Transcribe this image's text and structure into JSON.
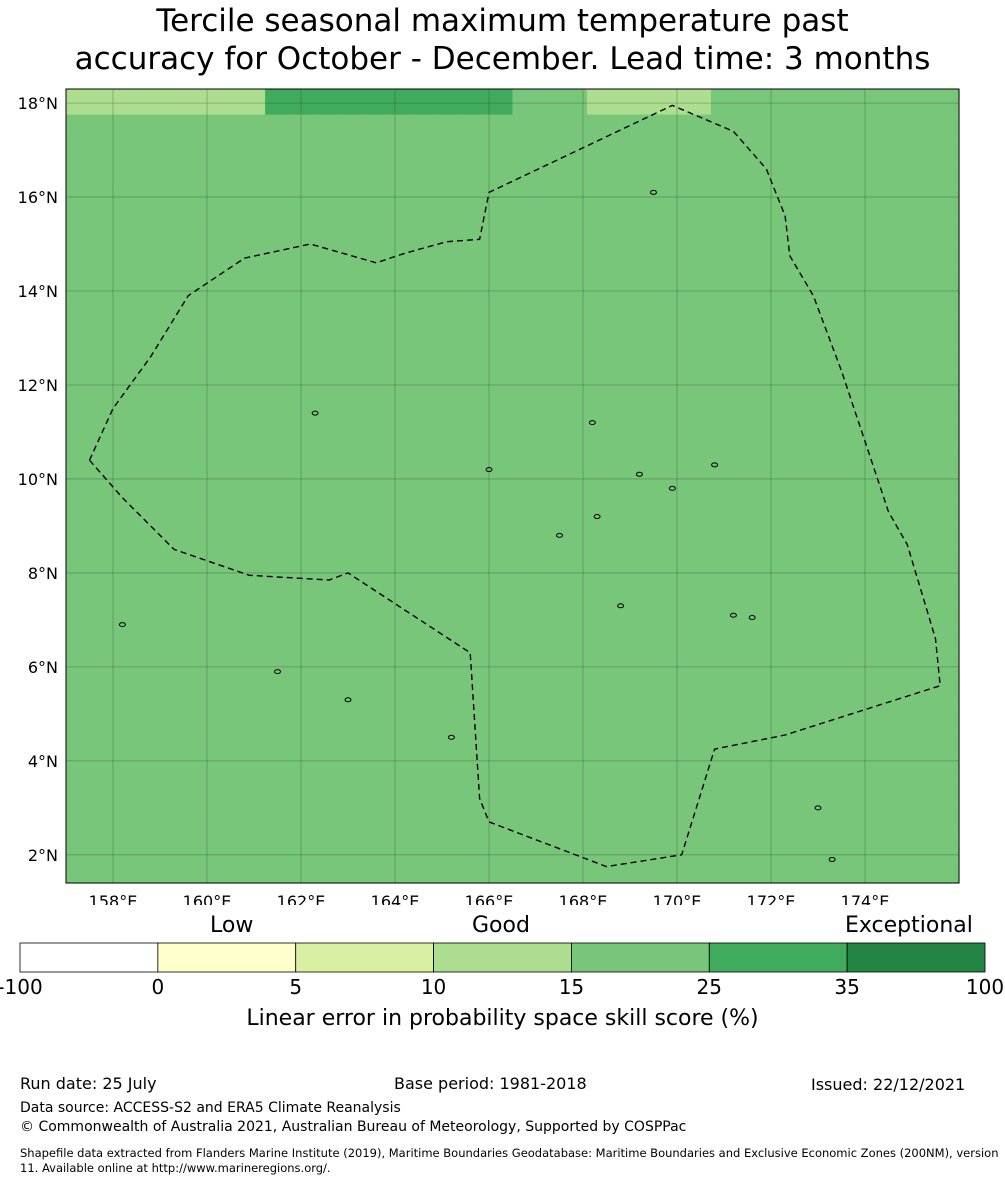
{
  "title": {
    "line1": "Tercile seasonal maximum temperature past",
    "line2": "accuracy for October - December. Lead time: 3 months"
  },
  "map": {
    "lon_range": [
      157,
      176
    ],
    "lat_range": [
      1.4,
      18.3
    ],
    "lat_ticks": [
      {
        "value": 18,
        "label": "18°N"
      },
      {
        "value": 16,
        "label": "16°N"
      },
      {
        "value": 14,
        "label": "14°N"
      },
      {
        "value": 12,
        "label": "12°N"
      },
      {
        "value": 10,
        "label": "10°N"
      },
      {
        "value": 8,
        "label": "8°N"
      },
      {
        "value": 6,
        "label": "6°N"
      },
      {
        "value": 4,
        "label": "4°N"
      },
      {
        "value": 2,
        "label": "2°N"
      }
    ],
    "lon_ticks": [
      {
        "value": 158,
        "label": "158°E"
      },
      {
        "value": 160,
        "label": "160°E"
      },
      {
        "value": 162,
        "label": "162°E"
      },
      {
        "value": 164,
        "label": "164°E"
      },
      {
        "value": 166,
        "label": "166°E"
      },
      {
        "value": 168,
        "label": "168°E"
      },
      {
        "value": 170,
        "label": "170°E"
      },
      {
        "value": 172,
        "label": "172°E"
      },
      {
        "value": 174,
        "label": "174°E"
      }
    ],
    "eez_boundary": [
      [
        157.5,
        10.4
      ],
      [
        158.2,
        9.6
      ],
      [
        159.3,
        8.5
      ],
      [
        160.9,
        7.95
      ],
      [
        162.6,
        7.85
      ],
      [
        163.0,
        8.0
      ],
      [
        165.6,
        6.3
      ],
      [
        165.8,
        3.2
      ],
      [
        166.0,
        2.7
      ],
      [
        168.5,
        1.75
      ],
      [
        170.1,
        2.0
      ],
      [
        170.8,
        4.25
      ],
      [
        172.3,
        4.55
      ],
      [
        175.6,
        5.6
      ],
      [
        175.5,
        6.6
      ],
      [
        174.9,
        8.6
      ],
      [
        174.5,
        9.3
      ],
      [
        173.5,
        12.3
      ],
      [
        172.9,
        13.9
      ],
      [
        172.4,
        14.75
      ],
      [
        172.3,
        15.6
      ],
      [
        171.9,
        16.6
      ],
      [
        171.2,
        17.4
      ],
      [
        169.9,
        17.95
      ],
      [
        166.0,
        16.1
      ],
      [
        165.8,
        15.1
      ],
      [
        165.1,
        15.05
      ],
      [
        164.2,
        14.8
      ],
      [
        163.6,
        14.6
      ],
      [
        162.2,
        15.0
      ],
      [
        160.8,
        14.7
      ],
      [
        159.6,
        13.9
      ],
      [
        158.8,
        12.6
      ],
      [
        158.0,
        11.5
      ],
      [
        157.5,
        10.4
      ]
    ],
    "islands": [
      [
        158.2,
        6.9
      ],
      [
        161.5,
        5.9
      ],
      [
        163.0,
        5.3
      ],
      [
        168.8,
        7.3
      ],
      [
        171.2,
        7.1
      ],
      [
        171.6,
        7.05
      ],
      [
        167.5,
        8.8
      ],
      [
        168.3,
        9.2
      ],
      [
        169.2,
        10.1
      ],
      [
        170.8,
        10.3
      ],
      [
        169.9,
        9.8
      ],
      [
        166.0,
        10.2
      ],
      [
        168.2,
        11.2
      ],
      [
        162.3,
        11.4
      ],
      [
        173.0,
        3.0
      ],
      [
        173.3,
        1.9
      ],
      [
        169.5,
        16.1
      ],
      [
        165.2,
        4.5
      ]
    ],
    "skill_grid": [
      "DDDDDDDDFFFFFFFFFFEEEDDDDDEEEEEEEEEE",
      "EEEEEEEEEEEEEEEEEEEEEEEEEEEEEEEEEEEE",
      "EEEEEEEEEEEEEEEEEEEEEEEEEEEEEEEEEEEE",
      "EEEEEEEEEEEEEEEEEEEEEEEEEEEEEEEEEEEE",
      "EEEEEEEEEEEEEEEEEEEEEEEEEEEEEEEEEEEE",
      "EEEEEEEEEEEEEEEEEEEEEEEEEEEEEEEEEEEE",
      "EEEEEEEEEEEEEEEEEEEEEEEEEEEEEEEEEEEE",
      "EEEEEEEEEEEEEEEEEEEEEEEEEEEEEEEEEEEE",
      "EEEEEEEEEEEEEEEEEEEEEEEEEEEEEEEEEEEE",
      "EEEEEEEEEEEEEEEEEEEEEEEEEEEEEEEEEEEE",
      "EEEEEEEEEEEEEEEEEEEEEEEEEEEEEEEEEEEE",
      "EEEEEEEEEEEEEEEEEEEEEEEEEEEEEEEEEEEE",
      "EEEEEEEEEEEEEEEEEEEEEEEEEEEEEEEEEEEE",
      "EEEEEEEEEEEEEEEEEEEEEEEEEEEEEEEEEEEE",
      "EEEEEEEEEEEEEEEEEEEEEEEEEEEEEEEEEEEE",
      "EEEEEEEEEEEEEEEEEEEEEEEEEEEEEEEEEEEE",
      "EEEEEEEEEEEEEEEEEEEEEEEEEEEEEEEEEEEE",
      "EEEEEEEEEEEEEEEEEEEEEEEEEEEEEEEEEEEE",
      "EEEEEEEEEEEEEEEEEEEEEEEEEEEEEEEEEEEE",
      "EEEEEEEEEEEEEEEEEEEEEEEEEEEEEEEEEEEE",
      "EEEEEEEEEEEEEEEEEEEEEEEEEEEEEEEEEEEE",
      "EEEEEEEEEEEEEEEEEEEEEEEEEEEEEEEEEEEE",
      "EEEEEEEEEEEEEEEEEEEEEEEEEEEEEEEEEEEE",
      "EEEEEEEEEEEEEEEEEEEEEEEEEEEEEEEEEEEE",
      "EEEEEEEEEEEEEEEEEEEEEEEEEEEEEEEEEEEE",
      "EEEEEEEEEEEEEEEEEEEEEEEEEEEEEEEEEEEE",
      "EEEEEEEEEEEEEEEEEEEEEEEEEEEEEEEEEEEE",
      "EEEEEEEEEEEEEEEEEEEEEEEEEEEEEEEEEEEE",
      "EEEEEEEEEEEEEEEEEEEEEEEEEEEEEEEEEEEE",
      "EEEEEEEEEEEEEEEEEEEEEEEEEEEEEEEEEEEE",
      "EEEEEEEEEEEEEEEEEEEEEEEEEEEEEEEEEEEE"
    ]
  },
  "colorbar": {
    "categories": [
      "Low",
      "Good",
      "Exceptional"
    ],
    "bins": [
      {
        "key": "A",
        "color": "#ffffff"
      },
      {
        "key": "B",
        "color": "#ffffcc"
      },
      {
        "key": "C",
        "color": "#d9f0a3"
      },
      {
        "key": "D",
        "color": "#addd8e"
      },
      {
        "key": "E",
        "color": "#78c679"
      },
      {
        "key": "F",
        "color": "#41ab5d"
      },
      {
        "key": "G",
        "color": "#238443"
      }
    ],
    "ticks": [
      "-100",
      "0",
      "5",
      "10",
      "15",
      "25",
      "35",
      "100"
    ],
    "axis_label": "Linear error in probability space skill score (%)"
  },
  "footer": {
    "run_date": "Run date: 25 July",
    "base_period": "Base period: 1981-2018",
    "issued": "Issued: 22/12/2021",
    "data_source": "Data source: ACCESS-S2 and ERA5 Climate Reanalysis",
    "copyright": "© Commonwealth of Australia 2021, Australian Bureau of Meteorology, Supported by COSPPac",
    "shapefile": "Shapefile data extracted from Flanders Marine Institute (2019), Maritime Boundaries Geodatabase: Maritime Boundaries and Exclusive Economic Zones (200NM), version 11. Available online at http://www.marineregions.org/."
  }
}
